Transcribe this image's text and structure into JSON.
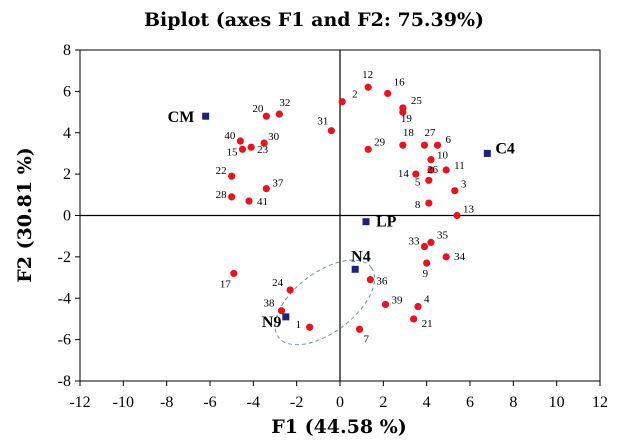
{
  "chart_data": {
    "type": "scatter",
    "title": "Biplot (axes F1 and F2: 75.39%)",
    "xlabel": "F1 (44.58 %)",
    "ylabel": "F2 (30.81 %)",
    "xlim": [
      -12,
      12
    ],
    "ylim": [
      -8,
      8
    ],
    "xticks": [
      -12,
      -10,
      -8,
      -6,
      -4,
      -2,
      0,
      2,
      4,
      6,
      8,
      10,
      12
    ],
    "yticks": [
      -8,
      -6,
      -4,
      -2,
      0,
      2,
      4,
      6,
      8
    ],
    "grid": false,
    "colors": {
      "observation": "#e8131c",
      "variable": "#1a237e"
    },
    "observations": [
      {
        "label": "1",
        "x": -1.4,
        "y": -5.4
      },
      {
        "label": "2",
        "x": 0.1,
        "y": 5.5
      },
      {
        "label": "3",
        "x": 5.3,
        "y": 1.2
      },
      {
        "label": "4",
        "x": 3.6,
        "y": -4.4
      },
      {
        "label": "5",
        "x": 4.1,
        "y": 1.7
      },
      {
        "label": "6",
        "x": 4.5,
        "y": 3.4
      },
      {
        "label": "7",
        "x": 0.9,
        "y": -5.5
      },
      {
        "label": "8",
        "x": 4.1,
        "y": 0.6
      },
      {
        "label": "9",
        "x": 4.0,
        "y": -2.3
      },
      {
        "label": "10",
        "x": 4.2,
        "y": 2.7
      },
      {
        "label": "11",
        "x": 4.9,
        "y": 2.2
      },
      {
        "label": "12",
        "x": 1.3,
        "y": 6.2
      },
      {
        "label": "13",
        "x": 5.4,
        "y": 0.0
      },
      {
        "label": "14",
        "x": 3.5,
        "y": 2.0
      },
      {
        "label": "15",
        "x": -4.5,
        "y": 3.2
      },
      {
        "label": "16",
        "x": 2.2,
        "y": 5.9
      },
      {
        "label": "17",
        "x": -4.9,
        "y": -2.8
      },
      {
        "label": "18",
        "x": 2.9,
        "y": 3.4
      },
      {
        "label": "19",
        "x": 2.9,
        "y": 5.0
      },
      {
        "label": "20",
        "x": -3.4,
        "y": 4.8
      },
      {
        "label": "21",
        "x": 3.4,
        "y": -5.0
      },
      {
        "label": "22",
        "x": -5.0,
        "y": 1.9
      },
      {
        "label": "23",
        "x": -4.1,
        "y": 3.3
      },
      {
        "label": "24",
        "x": -2.3,
        "y": -3.6
      },
      {
        "label": "25",
        "x": 2.9,
        "y": 5.2
      },
      {
        "label": "26",
        "x": 4.2,
        "y": 2.2
      },
      {
        "label": "27",
        "x": 3.9,
        "y": 3.4
      },
      {
        "label": "28",
        "x": -5.0,
        "y": 0.9
      },
      {
        "label": "29",
        "x": 1.3,
        "y": 3.2
      },
      {
        "label": "30",
        "x": -3.5,
        "y": 3.5
      },
      {
        "label": "31",
        "x": -0.4,
        "y": 4.1
      },
      {
        "label": "32",
        "x": -2.8,
        "y": 4.9
      },
      {
        "label": "33",
        "x": 3.9,
        "y": -1.5
      },
      {
        "label": "34",
        "x": 4.9,
        "y": -2.0
      },
      {
        "label": "35",
        "x": 4.2,
        "y": -1.3
      },
      {
        "label": "36",
        "x": 1.4,
        "y": -3.1
      },
      {
        "label": "37",
        "x": -3.4,
        "y": 1.3
      },
      {
        "label": "38",
        "x": -2.7,
        "y": -4.6
      },
      {
        "label": "39",
        "x": 2.1,
        "y": -4.3
      },
      {
        "label": "40",
        "x": -4.6,
        "y": 3.6
      },
      {
        "label": "41",
        "x": -4.2,
        "y": 0.7
      }
    ],
    "variables": [
      {
        "label": "CM",
        "x": -6.2,
        "y": 4.8
      },
      {
        "label": "C4",
        "x": 6.8,
        "y": 3.0
      },
      {
        "label": "LP",
        "x": 1.2,
        "y": -0.3
      },
      {
        "label": "N4",
        "x": 0.7,
        "y": -2.6
      },
      {
        "label": "N9",
        "x": -2.5,
        "y": -4.9
      }
    ]
  }
}
